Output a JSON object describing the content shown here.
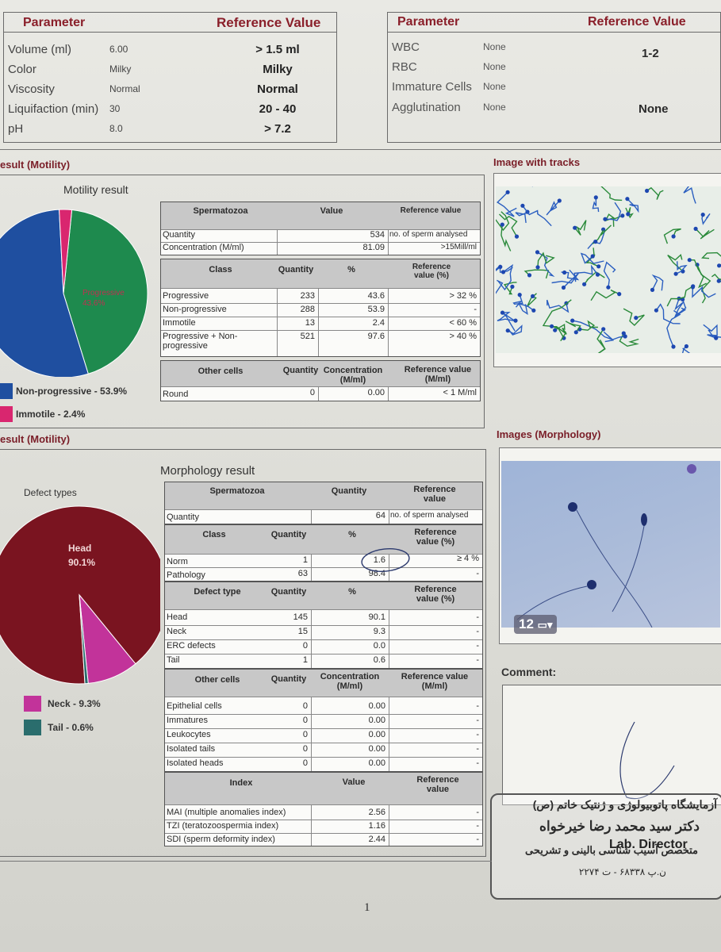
{
  "params_left": {
    "header": [
      "Parameter",
      "Reference Value"
    ],
    "rows": [
      {
        "name": "Volume (ml)",
        "value": "6.00",
        "ref": "> 1.5 ml"
      },
      {
        "name": "Color",
        "value": "Milky",
        "ref": "Milky"
      },
      {
        "name": "Viscosity",
        "value": "Normal",
        "ref": "Normal"
      },
      {
        "name": "Liquifaction (min)",
        "value": "30",
        "ref": "20 - 40"
      },
      {
        "name": "pH",
        "value": "8.0",
        "ref": "> 7.2"
      }
    ]
  },
  "params_right": {
    "header": [
      "Parameter",
      "Reference Value"
    ],
    "rows": [
      {
        "name": "WBC",
        "value": "None"
      },
      {
        "name": "RBC",
        "value": "None"
      },
      {
        "name": "Immature Cells",
        "value": "None"
      },
      {
        "name": "Agglutination",
        "value": "None"
      }
    ],
    "ref1": "1-2",
    "ref2": "None"
  },
  "motility": {
    "section_title": "esult (Motility)",
    "chart_title": "Motility result",
    "pie_label": "Progressive 43.6%",
    "legend": [
      {
        "label": "Non-progressive - 53.9%",
        "color": "#1f4fa0"
      },
      {
        "label": "Immotile - 2.4%",
        "color": "#d9266f"
      }
    ],
    "images_title": "Image with tracks",
    "sperm_table": {
      "header": [
        "Spermatozoa",
        "Value",
        "Reference value"
      ],
      "rows": [
        {
          "name": "Quantity",
          "value": "534",
          "ref": "no. of sperm analysed"
        },
        {
          "name": "Concentration (M/ml)",
          "value": "81.09",
          "ref": ">15Mill/ml"
        }
      ]
    },
    "class_table": {
      "header": [
        "Class",
        "Quantity",
        "%",
        "Reference value (%)"
      ],
      "rows": [
        {
          "name": "Progressive",
          "q": "233",
          "p": "43.6",
          "ref": "> 32 %"
        },
        {
          "name": "Non-progressive",
          "q": "288",
          "p": "53.9",
          "ref": "-"
        },
        {
          "name": "Immotile",
          "q": "13",
          "p": "2.4",
          "ref": "< 60 %"
        },
        {
          "name": "Progressive + Non-progressive",
          "q": "521",
          "p": "97.6",
          "ref": "> 40 %"
        }
      ]
    },
    "other_table": {
      "header": [
        "Other cells",
        "Quantity",
        "Concentration (M/ml)",
        "Reference value (M/ml)"
      ],
      "rows": [
        {
          "name": "Round",
          "q": "0",
          "c": "0.00",
          "ref": "< 1 M/ml"
        }
      ]
    }
  },
  "chart_data": [
    {
      "type": "pie",
      "title": "",
      "categories": [
        "Progressive",
        "Non-progressive",
        "Immotile"
      ],
      "values": [
        43.6,
        53.9,
        2.4
      ],
      "colors": [
        "#1e8a4e",
        "#1f4fa0",
        "#d9266f"
      ]
    },
    {
      "type": "pie",
      "title": "Defect types",
      "categories": [
        "Head",
        "Neck",
        "Tail"
      ],
      "values": [
        90.1,
        9.3,
        0.6
      ],
      "colors": [
        "#7a1420",
        "#c2339a",
        "#2a6d6d"
      ]
    }
  ],
  "morphology": {
    "section_title": "esult (Motility)",
    "chart_title": "Morphology result",
    "defect_title": "Defect types",
    "pie_label_1": "Head",
    "pie_label_2": "90.1%",
    "legend": [
      {
        "label": "Neck - 9.3%",
        "color": "#c2339a"
      },
      {
        "label": "Tail - 0.6%",
        "color": "#2a6d6d"
      }
    ],
    "images_title": "Images (Morphology)",
    "image_badge": "12",
    "sperm_table": {
      "header": [
        "Spermatozoa",
        "Quantity",
        "Reference value"
      ],
      "rows": [
        {
          "name": "Quantity",
          "q": "64",
          "ref": "no. of sperm analysed"
        }
      ]
    },
    "class_table": {
      "header": [
        "Class",
        "Quantity",
        "%",
        "Reference value (%)"
      ],
      "rows": [
        {
          "name": "Norm",
          "q": "1",
          "p": "1.6",
          "ref": "≥ 4 %"
        },
        {
          "name": "Pathology",
          "q": "63",
          "p": "98.4",
          "ref": "-"
        }
      ]
    },
    "defect_table": {
      "header": [
        "Defect type",
        "Quantity",
        "%",
        "Reference value (%)"
      ],
      "rows": [
        {
          "name": "Head",
          "q": "145",
          "p": "90.1",
          "ref": "-"
        },
        {
          "name": "Neck",
          "q": "15",
          "p": "9.3",
          "ref": "-"
        },
        {
          "name": "ERC defects",
          "q": "0",
          "p": "0.0",
          "ref": "-"
        },
        {
          "name": "Tail",
          "q": "1",
          "p": "0.6",
          "ref": "-"
        }
      ]
    },
    "other_table": {
      "header": [
        "Other cells",
        "Quantity",
        "Concentration (M/ml)",
        "Reference value (M/ml)"
      ],
      "rows": [
        {
          "name": "Epithelial cells",
          "q": "0",
          "c": "0.00",
          "ref": "-"
        },
        {
          "name": "Immatures",
          "q": "0",
          "c": "0.00",
          "ref": "-"
        },
        {
          "name": "Leukocytes",
          "q": "0",
          "c": "0.00",
          "ref": "-"
        },
        {
          "name": "Isolated tails",
          "q": "0",
          "c": "0.00",
          "ref": "-"
        },
        {
          "name": "Isolated heads",
          "q": "0",
          "c": "0.00",
          "ref": "-"
        }
      ]
    },
    "index_table": {
      "header": [
        "Index",
        "Value",
        "Reference value"
      ],
      "rows": [
        {
          "name": "MAI (multiple anomalies index)",
          "v": "2.56",
          "ref": "-"
        },
        {
          "name": "TZI (teratozoospermia index)",
          "v": "1.16",
          "ref": "-"
        },
        {
          "name": "SDI (sperm deformity index)",
          "v": "2.44",
          "ref": "-"
        }
      ]
    }
  },
  "comment_label": "Comment:",
  "stamp": {
    "line1": "آزمایشگاه پاتوبیولوژی و ژنتیک خاتم (ص)",
    "line2": "دکتر سید محمد رضا خیرخواه",
    "line3": "متخصص آسیب شناسی بالینی و تشریحی",
    "line4": "ن.پ ۶۸۳۳۸ - ت ۲۲۷۴",
    "director": "Lab. Director"
  },
  "page_number": "1"
}
